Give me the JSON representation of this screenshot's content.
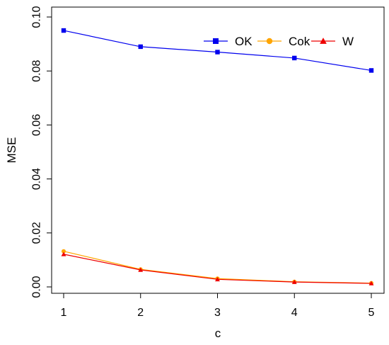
{
  "chart_data": {
    "type": "line",
    "xlabel": "c",
    "ylabel": "MSE",
    "x": [
      1,
      2,
      3,
      4,
      5
    ],
    "xlim": [
      1,
      5
    ],
    "ylim": [
      0,
      0.1
    ],
    "xticks": [
      "1",
      "2",
      "3",
      "4",
      "5"
    ],
    "yticks": [
      "0.00",
      "0.02",
      "0.04",
      "0.06",
      "0.08",
      "0.10"
    ],
    "grid": false,
    "legend_position": "top-right",
    "series": [
      {
        "name": "OK",
        "values": [
          0.095,
          0.089,
          0.087,
          0.0848,
          0.0802
        ],
        "color": "#0000ee",
        "marker": "square"
      },
      {
        "name": "Cok",
        "values": [
          0.0132,
          0.0065,
          0.0031,
          0.0019,
          0.0014
        ],
        "color": "#ffa500",
        "marker": "circle"
      },
      {
        "name": "W",
        "values": [
          0.0121,
          0.0063,
          0.0028,
          0.0018,
          0.0013
        ],
        "color": "#ee0000",
        "marker": "triangle"
      }
    ]
  }
}
